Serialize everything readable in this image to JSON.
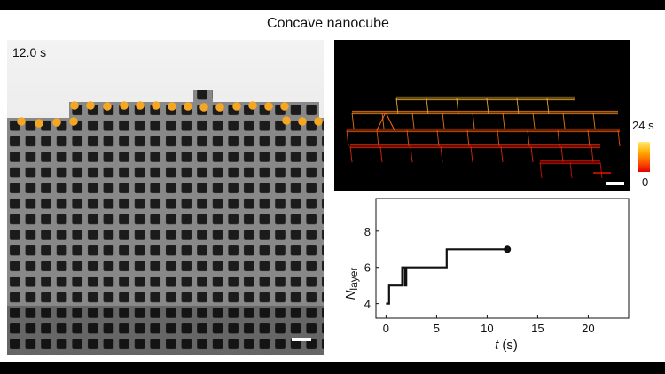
{
  "figure": {
    "title": "Concave nanocube",
    "time_stamp": "12.0 s",
    "colorbar": {
      "max_label": "24 s",
      "min_label": "0"
    },
    "colors": {
      "dots": "#f5a623",
      "trace_low": "#e60000",
      "trace_high": "#ffd84d"
    }
  },
  "chart_data": {
    "type": "line",
    "title": "",
    "xlabel": "t (s)",
    "ylabel": "N_layer",
    "ylabel_main": "N",
    "ylabel_sub": "layer",
    "xlim": [
      -1,
      24
    ],
    "ylim": [
      3.2,
      9.8
    ],
    "xticks": [
      0,
      5,
      10,
      15,
      20
    ],
    "yticks": [
      4,
      6,
      8
    ],
    "series": [
      {
        "x": [
          0.0,
          0.3,
          0.3,
          1.6,
          1.6,
          1.85,
          1.85,
          2.0,
          2.0,
          2.2,
          2.2,
          6.0,
          6.0,
          12.0
        ],
        "y": [
          4,
          4,
          5,
          5,
          6,
          6,
          5,
          5,
          6,
          6,
          6,
          6,
          7,
          7
        ]
      }
    ],
    "end_marker": {
      "x": 12.0,
      "y": 7
    }
  }
}
